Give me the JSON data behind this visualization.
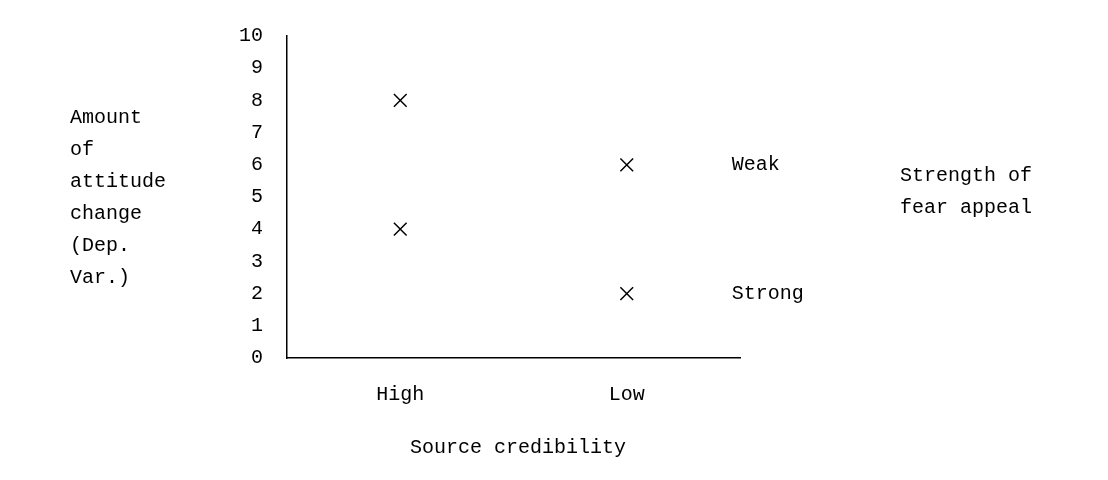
{
  "chart_data": {
    "type": "scatter",
    "categories": [
      "High",
      "Low"
    ],
    "series": [
      {
        "name": "Weak",
        "color": "#000000",
        "values": [
          8,
          6
        ]
      },
      {
        "name": "Strong",
        "color": "#000000",
        "values": [
          4,
          2
        ]
      }
    ],
    "ylim": [
      0,
      10
    ],
    "yticks": [
      0,
      1,
      2,
      3,
      4,
      5,
      6,
      7,
      8,
      9,
      10
    ],
    "xlabel": "Source credibility",
    "ylabel": "Amount of attitude change (Dep. Var.)",
    "legend_title": "Strength of fear appeal",
    "marker": "cross",
    "grid": false
  }
}
